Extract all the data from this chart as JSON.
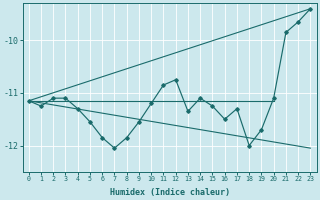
{
  "xlabel": "Humidex (Indice chaleur)",
  "bg_color": "#cce8ed",
  "line_color": "#1a6b6b",
  "xlim": [
    -0.5,
    23.5
  ],
  "ylim": [
    -12.5,
    -9.3
  ],
  "yticks": [
    -12,
    -11,
    -10
  ],
  "xticks": [
    0,
    1,
    2,
    3,
    4,
    5,
    6,
    7,
    8,
    9,
    10,
    11,
    12,
    13,
    14,
    15,
    16,
    17,
    18,
    19,
    20,
    21,
    22,
    23
  ],
  "main_line_x": [
    0,
    1,
    2,
    3,
    4,
    5,
    6,
    7,
    8,
    9,
    10,
    11,
    12,
    13,
    14,
    15,
    16,
    17,
    18,
    19,
    20,
    21,
    22,
    23
  ],
  "main_line_y": [
    -11.15,
    -11.25,
    -11.1,
    -11.1,
    -11.3,
    -11.55,
    -11.85,
    -12.05,
    -11.85,
    -11.55,
    -11.2,
    -10.85,
    -10.75,
    -11.35,
    -11.1,
    -11.25,
    -11.5,
    -11.3,
    -12.0,
    -11.7,
    -11.1,
    -9.85,
    -9.65,
    -9.4
  ],
  "max_line_x": [
    0,
    23
  ],
  "max_line_y": [
    -11.15,
    -9.4
  ],
  "min_line_x": [
    0,
    23
  ],
  "min_line_y": [
    -11.15,
    -12.05
  ],
  "avg_line_x": [
    0,
    20
  ],
  "avg_line_y": [
    -11.15,
    -11.15
  ]
}
